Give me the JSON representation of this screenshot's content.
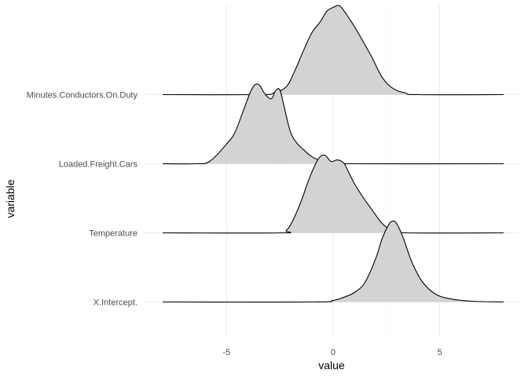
{
  "chart_data": {
    "type": "ridgeline",
    "title": "",
    "xlabel": "value",
    "ylabel": "variable",
    "xlim": [
      -8.0,
      8.0
    ],
    "x_ticks": [
      -5,
      0,
      5
    ],
    "x_tick_labels": [
      "-5",
      "0",
      "5"
    ],
    "grid": true,
    "legend": "none",
    "fill_color": "#d3d3d3",
    "line_color": "#000000",
    "series": [
      {
        "name": "X.Intercept.",
        "x": [
          -8.0,
          -1.0,
          0.0,
          0.5,
          1.0,
          1.5,
          2.0,
          2.3,
          2.6,
          2.8,
          3.0,
          3.3,
          3.7,
          4.2,
          4.8,
          5.5,
          6.5,
          8.0
        ],
        "density": [
          0.0,
          0.0,
          0.02,
          0.06,
          0.12,
          0.25,
          0.55,
          0.8,
          0.97,
          1.02,
          0.98,
          0.8,
          0.5,
          0.25,
          0.1,
          0.04,
          0.01,
          0.0
        ]
      },
      {
        "name": "Temperature",
        "x": [
          -8.0,
          -2.5,
          -2.2,
          -1.9,
          -1.5,
          -1.1,
          -0.7,
          -0.4,
          -0.1,
          0.2,
          0.5,
          0.7,
          1.0,
          1.4,
          1.8,
          2.3,
          2.8,
          3.5,
          8.0
        ],
        "density": [
          0.0,
          0.0,
          0.03,
          0.15,
          0.4,
          0.7,
          0.93,
          0.98,
          0.9,
          0.92,
          0.88,
          0.78,
          0.62,
          0.45,
          0.3,
          0.12,
          0.03,
          0.0,
          0.0
        ]
      },
      {
        "name": "Loaded.Freight.Cars",
        "x": [
          -8.0,
          -6.5,
          -5.8,
          -5.0,
          -4.6,
          -4.2,
          -3.8,
          -3.5,
          -3.2,
          -2.9,
          -2.7,
          -2.5,
          -2.3,
          -2.0,
          -1.7,
          -1.4,
          -1.0,
          -0.5,
          0.0,
          1.0,
          8.0
        ],
        "density": [
          0.0,
          0.0,
          0.03,
          0.25,
          0.4,
          0.68,
          0.95,
          1.0,
          0.88,
          0.82,
          0.92,
          0.93,
          0.72,
          0.4,
          0.26,
          0.18,
          0.09,
          0.03,
          0.01,
          0.0,
          0.0
        ]
      },
      {
        "name": "Minutes.Conductors.On.Duty",
        "x": [
          -8.0,
          -3.5,
          -2.8,
          -2.2,
          -1.8,
          -1.4,
          -1.0,
          -0.6,
          -0.3,
          0.0,
          0.3,
          0.6,
          0.9,
          1.3,
          1.8,
          2.3,
          2.8,
          3.4,
          4.0,
          8.0
        ],
        "density": [
          0.0,
          0.0,
          0.02,
          0.1,
          0.3,
          0.55,
          0.78,
          0.92,
          1.05,
          1.1,
          1.12,
          1.02,
          0.9,
          0.72,
          0.48,
          0.22,
          0.08,
          0.02,
          0.0,
          0.0
        ]
      }
    ]
  }
}
